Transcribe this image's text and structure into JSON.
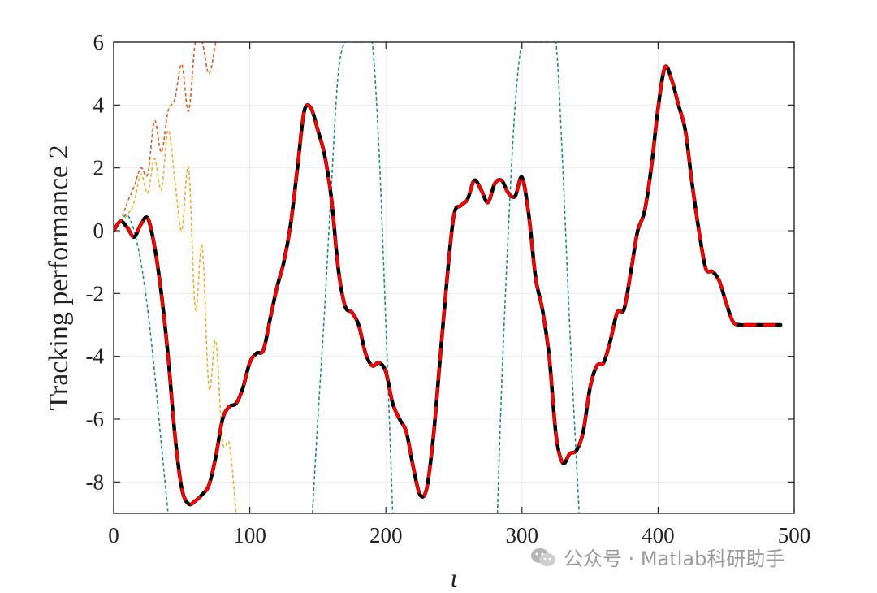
{
  "chart_data": {
    "type": "line",
    "title": "",
    "xlabel": "ι",
    "ylabel": "Tracking performance 2",
    "xlim": [
      0,
      500
    ],
    "ylim": [
      -9,
      6
    ],
    "xticks": [
      0,
      100,
      200,
      300,
      400,
      500
    ],
    "yticks": [
      6,
      4,
      2,
      0,
      -2,
      -4,
      -6,
      -8
    ],
    "xtick_labels": [
      "0",
      "100",
      "200",
      "300",
      "400",
      "500"
    ],
    "ytick_labels": [
      "6",
      "4",
      "2",
      "0",
      "-2",
      "-4",
      "-6",
      "-8"
    ],
    "grid": true,
    "legend": "none",
    "series": [
      {
        "color": "#000000",
        "style": "solid",
        "x": [
          0,
          5,
          10,
          15,
          20,
          25,
          30,
          35,
          40,
          45,
          50,
          55,
          60,
          65,
          70,
          75,
          80,
          85,
          90,
          95,
          100,
          105,
          110,
          115,
          120,
          125,
          130,
          135,
          140,
          145,
          150,
          155,
          160,
          165,
          170,
          175,
          180,
          185,
          190,
          195,
          200,
          205,
          210,
          215,
          220,
          225,
          230,
          235,
          240,
          245,
          250,
          255,
          260,
          265,
          270,
          275,
          280,
          285,
          290,
          295,
          300,
          305,
          310,
          315,
          320,
          325,
          330,
          335,
          340,
          345,
          350,
          355,
          360,
          365,
          370,
          375,
          380,
          385,
          390,
          395,
          400,
          405,
          410,
          415,
          420,
          425,
          430,
          435,
          440,
          445,
          450,
          455,
          460,
          465,
          470,
          475,
          480,
          485,
          490
        ],
        "y": [
          0,
          0.3,
          0.1,
          -0.2,
          0.2,
          0.4,
          -0.5,
          -2.0,
          -4.0,
          -6.5,
          -8.2,
          -8.7,
          -8.6,
          -8.4,
          -8.1,
          -7.2,
          -6.0,
          -5.6,
          -5.5,
          -5.0,
          -4.2,
          -3.9,
          -3.8,
          -2.8,
          -1.8,
          -1.0,
          0.2,
          2.0,
          3.8,
          3.9,
          3.2,
          2.4,
          1.0,
          -1.2,
          -2.4,
          -2.6,
          -3.0,
          -3.9,
          -4.3,
          -4.2,
          -4.5,
          -5.5,
          -6.0,
          -6.4,
          -7.5,
          -8.4,
          -8.2,
          -6.5,
          -4.0,
          -1.5,
          0.5,
          0.8,
          1.0,
          1.6,
          1.3,
          0.9,
          1.5,
          1.6,
          1.2,
          1.1,
          1.7,
          0.5,
          -1.5,
          -2.5,
          -4.0,
          -6.5,
          -7.4,
          -7.1,
          -7.0,
          -6.4,
          -5.0,
          -4.3,
          -4.2,
          -3.5,
          -2.6,
          -2.5,
          -1.3,
          0.0,
          0.6,
          2.0,
          3.9,
          5.2,
          4.8,
          4.0,
          3.2,
          1.5,
          0.0,
          -1.2,
          -1.3,
          -1.6,
          -2.3,
          -2.9,
          -3.0,
          -3.0,
          -3.0,
          -3.0,
          -3.0,
          -3.0,
          -3.0
        ]
      },
      {
        "color": "#ff0000",
        "style": "dashed",
        "x": [
          0,
          5,
          10,
          15,
          20,
          25,
          30,
          35,
          40,
          45,
          50,
          55,
          60,
          65,
          70,
          75,
          80,
          85,
          90,
          95,
          100,
          105,
          110,
          115,
          120,
          125,
          130,
          135,
          140,
          145,
          150,
          155,
          160,
          165,
          170,
          175,
          180,
          185,
          190,
          195,
          200,
          205,
          210,
          215,
          220,
          225,
          230,
          235,
          240,
          245,
          250,
          255,
          260,
          265,
          270,
          275,
          280,
          285,
          290,
          295,
          300,
          305,
          310,
          315,
          320,
          325,
          330,
          335,
          340,
          345,
          350,
          355,
          360,
          365,
          370,
          375,
          380,
          385,
          390,
          395,
          400,
          405,
          410,
          415,
          420,
          425,
          430,
          435,
          440,
          445,
          450,
          455,
          460,
          465,
          470,
          475,
          480,
          485,
          490
        ],
        "y": [
          0,
          0.3,
          0.1,
          -0.2,
          0.2,
          0.4,
          -0.5,
          -2.0,
          -4.0,
          -6.5,
          -8.2,
          -8.7,
          -8.6,
          -8.4,
          -8.1,
          -7.2,
          -6.0,
          -5.6,
          -5.5,
          -5.0,
          -4.2,
          -3.9,
          -3.8,
          -2.8,
          -1.8,
          -1.0,
          0.2,
          2.0,
          3.8,
          3.9,
          3.2,
          2.4,
          1.0,
          -1.2,
          -2.4,
          -2.6,
          -3.0,
          -3.9,
          -4.3,
          -4.2,
          -4.5,
          -5.5,
          -6.0,
          -6.4,
          -7.5,
          -8.4,
          -8.2,
          -6.5,
          -4.0,
          -1.5,
          0.5,
          0.8,
          1.0,
          1.6,
          1.3,
          0.9,
          1.5,
          1.6,
          1.2,
          1.1,
          1.7,
          0.5,
          -1.5,
          -2.5,
          -4.0,
          -6.5,
          -7.4,
          -7.1,
          -7.0,
          -6.4,
          -5.0,
          -4.3,
          -4.2,
          -3.5,
          -2.6,
          -2.5,
          -1.3,
          0.0,
          0.6,
          2.0,
          3.9,
          5.2,
          4.8,
          4.0,
          3.2,
          1.5,
          0.0,
          -1.2,
          -1.3,
          -1.6,
          -2.3,
          -2.9,
          -3.0,
          -3.0,
          -3.0,
          -3.0,
          -3.0,
          -3.0,
          -3.0
        ]
      },
      {
        "color": "#1a8c8c",
        "style": "dotted",
        "x": [
          0,
          5,
          10,
          15,
          20,
          25,
          30,
          35,
          40
        ],
        "y": [
          0,
          0.3,
          0.5,
          0.0,
          -1.0,
          -2.5,
          -4.5,
          -6.8,
          -9.0
        ]
      },
      {
        "color": "#1a8c8c",
        "style": "dotted",
        "x": [
          146,
          150,
          155,
          160,
          165,
          170,
          175,
          180,
          185,
          190,
          195,
          200,
          205
        ],
        "y": [
          -9.0,
          -6.0,
          -2.5,
          1.5,
          5.0,
          6.0,
          6.0,
          6.0,
          6.0,
          6.0,
          2.5,
          -3.0,
          -9.0
        ]
      },
      {
        "color": "#1a8c8c",
        "style": "dotted",
        "x": [
          282,
          285,
          290,
          295,
          300,
          305,
          310,
          315,
          320,
          325,
          330,
          335,
          342
        ],
        "y": [
          -9.0,
          -5.0,
          0.0,
          4.0,
          6.0,
          6.0,
          6.0,
          6.0,
          6.0,
          6.0,
          2.0,
          -3.0,
          -9.0
        ]
      },
      {
        "color": "#e05a1a",
        "style": "dotted",
        "x": [
          0,
          5,
          10,
          15,
          20,
          25,
          30,
          35,
          40,
          45,
          50,
          55,
          60,
          65,
          70,
          75
        ],
        "y": [
          0,
          0.3,
          0.9,
          1.4,
          2.0,
          1.8,
          3.5,
          2.5,
          3.8,
          4.2,
          5.3,
          3.8,
          6.0,
          6.0,
          5.0,
          6.0
        ]
      },
      {
        "color": "#f0b020",
        "style": "dotted",
        "x": [
          0,
          5,
          10,
          15,
          20,
          25,
          30,
          35,
          40,
          45,
          50,
          55,
          60,
          65,
          70,
          75,
          80,
          85,
          90
        ],
        "y": [
          0,
          0.3,
          0.5,
          0.9,
          1.8,
          1.2,
          2.3,
          1.3,
          3.2,
          1.6,
          0.0,
          2.0,
          -2.5,
          -0.5,
          -5.0,
          -3.5,
          -6.7,
          -6.8,
          -9.0
        ]
      }
    ]
  },
  "watermark": {
    "text": "公众号 · Matlab科研助手"
  }
}
